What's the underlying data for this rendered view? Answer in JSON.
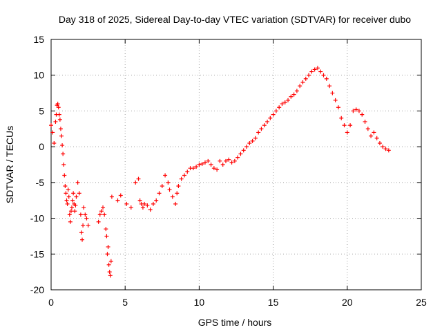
{
  "chart_data": {
    "type": "scatter",
    "title": "Day 318 of 2025, Sidereal Day-to-day VTEC variation (SDTVAR) for receiver dubo",
    "xlabel": "GPS time / hours",
    "ylabel": "SDTVAR / TECUs",
    "xlim": [
      0,
      25
    ],
    "ylim": [
      -20,
      15
    ],
    "xticks": [
      0,
      5,
      10,
      15,
      20,
      25
    ],
    "yticks": [
      -20,
      -15,
      -10,
      -5,
      0,
      5,
      10,
      15
    ],
    "grid": true,
    "marker": "+",
    "marker_color": "#ff0000",
    "series": [
      {
        "name": "SDTVAR",
        "x": [
          0.0,
          0.1,
          0.2,
          0.3,
          0.35,
          0.4,
          0.45,
          0.5,
          0.55,
          0.6,
          0.65,
          0.7,
          0.75,
          0.8,
          0.85,
          0.9,
          0.95,
          1.0,
          1.05,
          1.1,
          1.15,
          1.2,
          1.25,
          1.3,
          1.35,
          1.4,
          1.45,
          1.5,
          1.55,
          1.6,
          1.65,
          1.7,
          1.8,
          1.9,
          2.0,
          2.05,
          2.1,
          2.15,
          2.2,
          2.3,
          2.4,
          2.5,
          3.2,
          3.3,
          3.4,
          3.5,
          3.6,
          3.7,
          3.75,
          3.8,
          3.85,
          3.9,
          3.95,
          4.0,
          4.05,
          4.1,
          4.5,
          4.7,
          5.1,
          5.4,
          5.7,
          5.9,
          6.0,
          6.1,
          6.2,
          6.3,
          6.5,
          6.7,
          6.9,
          7.1,
          7.3,
          7.5,
          7.7,
          7.9,
          8.0,
          8.2,
          8.4,
          8.5,
          8.6,
          8.8,
          9.0,
          9.2,
          9.4,
          9.6,
          9.8,
          10.0,
          10.2,
          10.4,
          10.6,
          10.8,
          11.0,
          11.2,
          11.4,
          11.6,
          11.8,
          12.0,
          12.2,
          12.4,
          12.6,
          12.8,
          13.0,
          13.2,
          13.4,
          13.6,
          13.8,
          14.0,
          14.2,
          14.4,
          14.6,
          14.8,
          15.0,
          15.2,
          15.4,
          15.6,
          15.8,
          16.0,
          16.2,
          16.4,
          16.6,
          16.8,
          17.0,
          17.2,
          17.4,
          17.6,
          17.8,
          18.0,
          18.2,
          18.4,
          18.6,
          18.8,
          19.0,
          19.2,
          19.4,
          19.6,
          19.8,
          20.0,
          20.2,
          20.4,
          20.6,
          20.8,
          21.0,
          21.2,
          21.4,
          21.6,
          21.8,
          22.0,
          22.2,
          22.4,
          22.6,
          22.8
        ],
        "y": [
          3.0,
          2.0,
          0.5,
          3.5,
          4.5,
          5.8,
          6.0,
          5.5,
          4.5,
          3.8,
          2.5,
          1.5,
          0.2,
          -1.0,
          -2.5,
          -4.0,
          -5.5,
          -6.5,
          -7.5,
          -8.0,
          -6.0,
          -7.0,
          -9.5,
          -10.5,
          -9.0,
          -8.5,
          -7.5,
          -6.5,
          -8.0,
          -9.0,
          -8.2,
          -7.0,
          -5.0,
          -6.5,
          -9.5,
          -12.0,
          -13.0,
          -11.0,
          -8.5,
          -9.5,
          -10.0,
          -11.0,
          -10.5,
          -9.5,
          -9.0,
          -8.5,
          -9.5,
          -11.5,
          -12.5,
          -15.0,
          -14.0,
          -16.5,
          -17.5,
          -18.0,
          -16.0,
          -7.0,
          -7.5,
          -6.8,
          -8.0,
          -8.5,
          -5.0,
          -4.5,
          -7.5,
          -8.0,
          -8.5,
          -8.0,
          -8.2,
          -8.8,
          -8.0,
          -7.5,
          -6.5,
          -5.5,
          -4.0,
          -5.0,
          -6.0,
          -7.0,
          -8.0,
          -6.5,
          -5.5,
          -4.5,
          -4.0,
          -3.5,
          -3.0,
          -3.0,
          -2.8,
          -2.5,
          -2.4,
          -2.2,
          -2.0,
          -2.5,
          -3.0,
          -3.2,
          -2.0,
          -2.5,
          -2.0,
          -1.8,
          -2.2,
          -2.0,
          -1.5,
          -1.0,
          -0.5,
          0.0,
          0.5,
          0.8,
          1.2,
          2.0,
          2.5,
          3.0,
          3.5,
          4.0,
          4.5,
          5.0,
          5.5,
          6.0,
          6.2,
          6.5,
          7.0,
          7.3,
          7.8,
          8.5,
          9.0,
          9.5,
          10.0,
          10.5,
          10.8,
          11.0,
          10.5,
          10.0,
          9.5,
          8.5,
          7.5,
          6.5,
          5.5,
          4.0,
          3.0,
          2.0,
          3.0,
          5.0,
          5.2,
          5.0,
          4.5,
          3.5,
          2.5,
          1.5,
          2.0,
          1.2,
          0.5,
          0.0,
          -0.3,
          -0.5
        ]
      }
    ]
  }
}
